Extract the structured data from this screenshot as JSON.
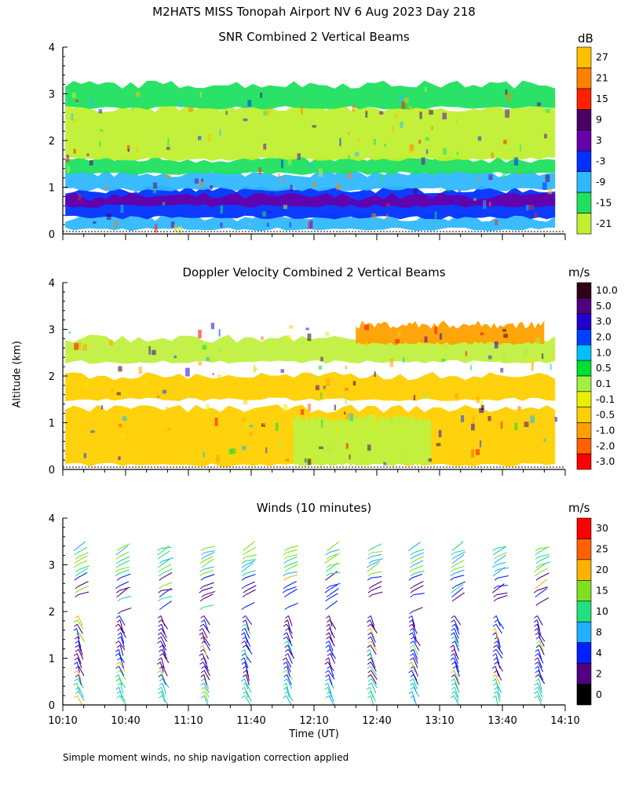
{
  "title": "M2HATS MISS Tonopah Airport NV   6 Aug 2023 Day 218",
  "footnote": "Simple moment winds, no ship navigation correction applied",
  "chart_data": [
    {
      "type": "heatmap",
      "title": "SNR Combined 2 Vertical Beams",
      "units": "dB",
      "ylabel": "Altitude (km)",
      "yticks": [
        "0",
        "1",
        "2",
        "3",
        "4"
      ],
      "ylim": [
        0,
        4
      ],
      "xticks": [],
      "xlim_hours": [
        10.1667,
        14.1667
      ],
      "colorbar_labels": [
        "27",
        "21",
        "15",
        "9",
        "3",
        "-3",
        "-9",
        "-15",
        "-21"
      ],
      "colorbar_colors": [
        "#ffc000",
        "#ff8000",
        "#ff2000",
        "#4b0066",
        "#6600aa",
        "#0030ff",
        "#30b8ff",
        "#20e060",
        "#c0f030"
      ],
      "layers": [
        {
          "ymin": 0.1,
          "ymax": 0.35,
          "color": "#30b8ff"
        },
        {
          "ymin": 0.35,
          "ymax": 0.95,
          "color": "#0030ff"
        },
        {
          "ymin": 0.6,
          "ymax": 0.8,
          "color": "#6600aa"
        },
        {
          "ymin": 0.95,
          "ymax": 1.3,
          "color": "#30b8ff"
        },
        {
          "ymin": 1.3,
          "ymax": 1.6,
          "color": "#20e060"
        },
        {
          "ymin": 1.6,
          "ymax": 2.7,
          "color": "#c0f030"
        },
        {
          "ymin": 2.7,
          "ymax": 3.2,
          "color": "#20e060"
        }
      ]
    },
    {
      "type": "heatmap",
      "title": "Doppler Velocity Combined 2 Vertical Beams",
      "units": "m/s",
      "ylabel": "Altitude (km)",
      "yticks": [
        "0",
        "1",
        "2",
        "3",
        "4"
      ],
      "ylim": [
        0,
        4
      ],
      "xticks": [],
      "xlim_hours": [
        10.1667,
        14.1667
      ],
      "colorbar_labels": [
        "10.0",
        "5.0",
        "3.0",
        "2.0",
        "1.0",
        "0.5",
        "0.1",
        "-0.1",
        "-0.5",
        "-1.0",
        "-2.0",
        "-3.0"
      ],
      "colorbar_colors": [
        "#300018",
        "#500080",
        "#2000d0",
        "#0040ff",
        "#00c0ff",
        "#00e030",
        "#a0f040",
        "#e8f000",
        "#ffd000",
        "#ffa000",
        "#ff6000",
        "#ff0000"
      ],
      "layers": [
        {
          "ymin": 0.1,
          "ymax": 1.3,
          "color": "#ffd000"
        },
        {
          "ymin": 0.1,
          "ymax": 1.1,
          "color": "#c0f040",
          "x0": 12.0,
          "x1": 13.1
        },
        {
          "ymin": 1.5,
          "ymax": 2.0,
          "color": "#ffd000"
        },
        {
          "ymin": 2.3,
          "ymax": 2.8,
          "color": "#c0f040"
        },
        {
          "ymin": 2.7,
          "ymax": 3.1,
          "color": "#ffa000",
          "x0": 12.5,
          "x1": 14.0
        }
      ]
    },
    {
      "type": "wind-barbs",
      "title": "Winds (10 minutes)",
      "units": "m/s",
      "xlabel": "Time (UT)",
      "ylabel": "Altitude (km)",
      "yticks": [
        "0",
        "1",
        "2",
        "3",
        "4"
      ],
      "ylim": [
        0,
        4
      ],
      "xticks": [
        "10:10",
        "10:40",
        "11:10",
        "11:40",
        "12:10",
        "12:40",
        "13:10",
        "13:40",
        "14:10"
      ],
      "xlim_hours": [
        10.1667,
        14.1667
      ],
      "colorbar_labels": [
        "30",
        "25",
        "20",
        "15",
        "10",
        "8",
        "4",
        "2",
        "0"
      ],
      "colorbar_colors": [
        "#ff0000",
        "#ff6000",
        "#ffb000",
        "#80e020",
        "#20e080",
        "#20b0ff",
        "#0020ff",
        "#500080",
        "#000000"
      ],
      "profile_interval_minutes": 10,
      "profile_altitude_range_km": [
        0.2,
        3.4
      ]
    }
  ]
}
